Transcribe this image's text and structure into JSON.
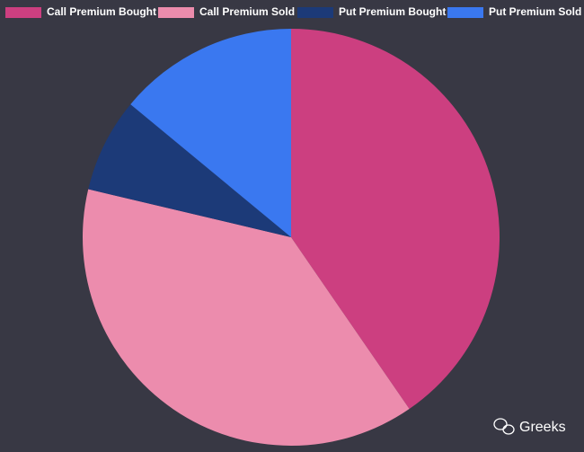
{
  "chart_data": {
    "type": "pie",
    "categories": [
      "Call Premium Bought",
      "Call Premium Sold",
      "Put Premium Bought",
      "Put Premium Sold"
    ],
    "values": [
      40.4,
      38.3,
      7.3,
      14.0
    ],
    "colors": [
      "#cc3f80",
      "#ec8cad",
      "#1c3a78",
      "#3a78f0"
    ],
    "legend": "top"
  },
  "watermark": "Greeks"
}
